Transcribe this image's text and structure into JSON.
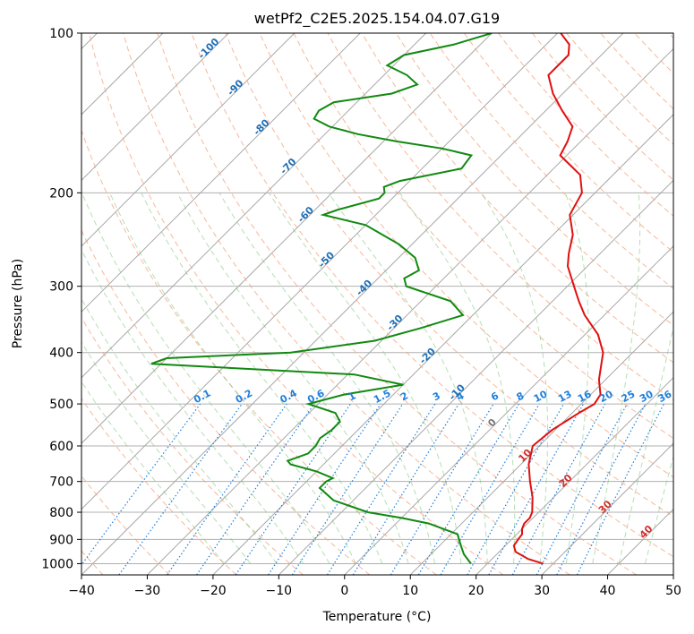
{
  "chart_data": {
    "type": "line",
    "title": "wetPf2_C2E5.2025.154.04.07.G19",
    "xlabel": "Temperature (°C)",
    "ylabel": "Pressure (hPa)",
    "xlim": [
      -40,
      50
    ],
    "ylim": [
      1050,
      100
    ],
    "yscale": "log",
    "skew": true,
    "grid": true,
    "x_ticks": [
      -40,
      -30,
      -20,
      -10,
      0,
      10,
      20,
      30,
      40,
      50
    ],
    "x_tick_labels": [
      "−40",
      "−30",
      "−20",
      "−10",
      "0",
      "10",
      "20",
      "30",
      "40",
      "50"
    ],
    "y_ticks": [
      1000,
      900,
      800,
      700,
      600,
      500,
      400,
      300,
      200,
      100
    ],
    "y_tick_labels": [
      "1000",
      "900",
      "800",
      "700",
      "600",
      "500",
      "400",
      "300",
      "200",
      "100"
    ],
    "series": [
      {
        "color": "#e01010",
        "points": [
          [
            1000,
            28.5
          ],
          [
            980,
            25.5
          ],
          [
            950,
            22.5
          ],
          [
            925,
            21.3
          ],
          [
            900,
            21.0
          ],
          [
            880,
            20.8
          ],
          [
            860,
            20.0
          ],
          [
            840,
            19.5
          ],
          [
            820,
            19.5
          ],
          [
            800,
            19.0
          ],
          [
            750,
            16.8
          ],
          [
            700,
            14.0
          ],
          [
            650,
            11.2
          ],
          [
            600,
            9.0
          ],
          [
            560,
            9.5
          ],
          [
            520,
            11.0
          ],
          [
            500,
            12.0
          ],
          [
            480,
            11.5
          ],
          [
            450,
            9.0
          ],
          [
            400,
            5.5
          ],
          [
            370,
            2.0
          ],
          [
            340,
            -3.0
          ],
          [
            320,
            -6.0
          ],
          [
            300,
            -9.0
          ],
          [
            275,
            -13.0
          ],
          [
            260,
            -14.8
          ],
          [
            240,
            -17.0
          ],
          [
            220,
            -20.5
          ],
          [
            200,
            -22.0
          ],
          [
            185,
            -25.0
          ],
          [
            170,
            -31.0
          ],
          [
            160,
            -32.0
          ],
          [
            150,
            -33.5
          ],
          [
            140,
            -37.5
          ],
          [
            130,
            -41.5
          ],
          [
            120,
            -45.0
          ],
          [
            115,
            -45.0
          ],
          [
            110,
            -45.0
          ],
          [
            105,
            -46.5
          ],
          [
            100,
            -49.5
          ]
        ]
      },
      {
        "color": "#108a10",
        "points": [
          [
            1000,
            17.5
          ],
          [
            960,
            15.0
          ],
          [
            930,
            13.5
          ],
          [
            900,
            12.0
          ],
          [
            880,
            11.0
          ],
          [
            860,
            8.0
          ],
          [
            840,
            5.0
          ],
          [
            820,
            0.0
          ],
          [
            800,
            -6.0
          ],
          [
            760,
            -13.0
          ],
          [
            720,
            -17.0
          ],
          [
            700,
            -17.0
          ],
          [
            690,
            -16.5
          ],
          [
            670,
            -20.0
          ],
          [
            650,
            -25.0
          ],
          [
            640,
            -26.0
          ],
          [
            630,
            -25.0
          ],
          [
            620,
            -24.0
          ],
          [
            600,
            -24.0
          ],
          [
            580,
            -24.5
          ],
          [
            560,
            -24.0
          ],
          [
            540,
            -24.0
          ],
          [
            520,
            -26.0
          ],
          [
            500,
            -31.5
          ],
          [
            480,
            -27.5
          ],
          [
            460,
            -20.0
          ],
          [
            440,
            -29.0
          ],
          [
            420,
            -61.5
          ],
          [
            410,
            -60.0
          ],
          [
            400,
            -42.0
          ],
          [
            380,
            -31.0
          ],
          [
            360,
            -26.0
          ],
          [
            340,
            -21.5
          ],
          [
            320,
            -25.5
          ],
          [
            300,
            -34.5
          ],
          [
            290,
            -36.0
          ],
          [
            280,
            -35.0
          ],
          [
            265,
            -37.5
          ],
          [
            250,
            -42.0
          ],
          [
            230,
            -50.0
          ],
          [
            220,
            -58.0
          ],
          [
            215,
            -56.5
          ],
          [
            205,
            -52.0
          ],
          [
            200,
            -52.0
          ],
          [
            195,
            -53.0
          ],
          [
            190,
            -51.5
          ],
          [
            180,
            -44.0
          ],
          [
            170,
            -44.5
          ],
          [
            165,
            -50.0
          ],
          [
            160,
            -58.0
          ],
          [
            155,
            -65.0
          ],
          [
            150,
            -70.5
          ],
          [
            145,
            -74.0
          ],
          [
            140,
            -74.5
          ],
          [
            135,
            -73.5
          ],
          [
            130,
            -66.0
          ],
          [
            125,
            -63.5
          ],
          [
            120,
            -66.5
          ],
          [
            115,
            -71.0
          ],
          [
            110,
            -70.0
          ],
          [
            105,
            -64.0
          ],
          [
            100,
            -60.0
          ]
        ]
      }
    ],
    "dry_adiabat_color": "#f4a07a",
    "moist_adiabat_color": "#79c479",
    "mixing_ratio_color": "#1f7fdd",
    "isotherm_labels": [
      "-100",
      "-90",
      "-80",
      "-70",
      "-60",
      "-50",
      "-40",
      "-30",
      "-20",
      "-10",
      "0",
      "10",
      "20",
      "30",
      "40"
    ],
    "isotherm_label_values": [
      -100,
      -90,
      -80,
      -70,
      -60,
      -50,
      -40,
      -30,
      -20,
      -10,
      0,
      10,
      20,
      30,
      40
    ],
    "isotherm_label_pressures": [
      108,
      128,
      152,
      180,
      222,
      270,
      305,
      355,
      410,
      480,
      548,
      632,
      705,
      790,
      880
    ],
    "mixing_ratio_labels": [
      "0.1",
      "0.2",
      "0.4",
      "0.6",
      "1",
      "1.5",
      "2",
      "3",
      "4",
      "6",
      "8",
      "10",
      "13",
      "16",
      "20",
      "25",
      "30",
      "36"
    ],
    "mixing_ratio_values": [
      0.1,
      0.2,
      0.4,
      0.6,
      1,
      1.5,
      2,
      3,
      4,
      6,
      8,
      10,
      13,
      16,
      20,
      25,
      30,
      36
    ]
  }
}
